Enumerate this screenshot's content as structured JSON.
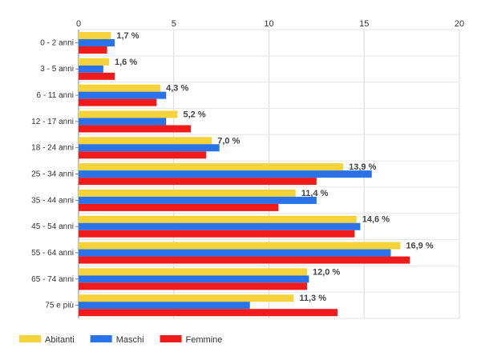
{
  "chart_data": {
    "type": "bar",
    "orientation": "horizontal",
    "categories": [
      "0 - 2 anni",
      "3 - 5 anni",
      "6 - 11 anni",
      "12 - 17 anni",
      "18 - 24 anni",
      "25 - 34 anni",
      "35 - 44 anni",
      "45 - 54 anni",
      "55 - 64 anni",
      "65 - 74 anni",
      "75 e più"
    ],
    "series": [
      {
        "name": "Abitanti",
        "color": "#f7d33b",
        "values": [
          1.7,
          1.6,
          4.3,
          5.2,
          7.0,
          13.9,
          11.4,
          14.6,
          16.9,
          12.0,
          11.3
        ]
      },
      {
        "name": "Maschi",
        "color": "#2a73e8",
        "values": [
          1.9,
          1.3,
          4.6,
          4.6,
          7.4,
          15.4,
          12.5,
          14.8,
          16.4,
          12.1,
          9.0
        ]
      },
      {
        "name": "Femmine",
        "color": "#f21b1b",
        "values": [
          1.5,
          1.9,
          4.1,
          5.9,
          6.7,
          12.5,
          10.5,
          14.5,
          17.4,
          12.0,
          13.6
        ]
      }
    ],
    "data_labels": [
      "1,7 %",
      "1,6 %",
      "4,3 %",
      "5,2 %",
      "7,0 %",
      "13,9 %",
      "11,4 %",
      "14,6 %",
      "16,9 %",
      "12,0 %",
      "11,3 %"
    ],
    "xlim": [
      0,
      20
    ],
    "xticks": [
      "0",
      "5",
      "10",
      "15",
      "20"
    ],
    "xtick_values": [
      0,
      5,
      10,
      15,
      20
    ],
    "grid": true,
    "legend_position": "bottom-left",
    "title": "",
    "xlabel": "",
    "ylabel": ""
  }
}
